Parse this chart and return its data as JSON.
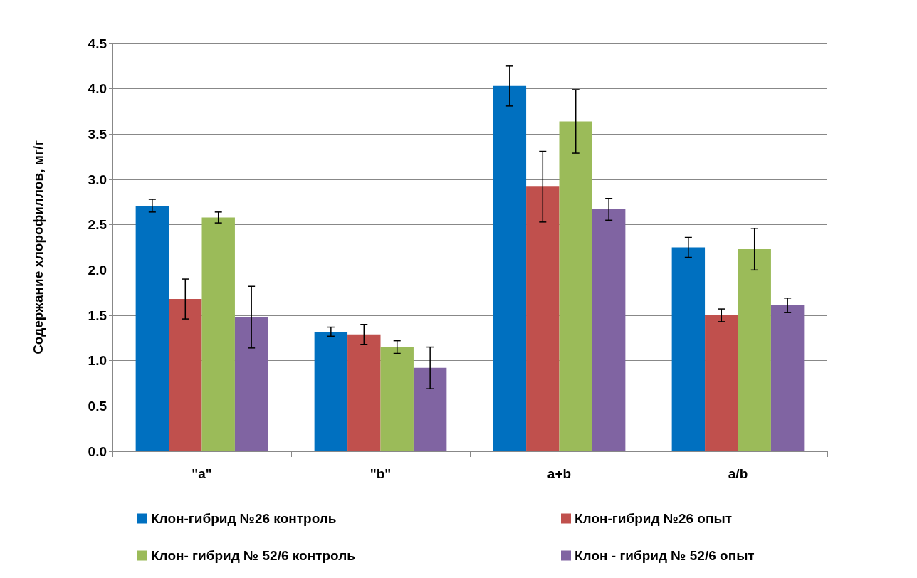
{
  "chart_data": {
    "type": "bar",
    "ylabel": "Содержание хлорофиллов, мг/г",
    "categories": [
      "\"a\"",
      "\"b\"",
      "a+b",
      "a/b"
    ],
    "series": [
      {
        "name": "Клон-гибрид №26 контроль",
        "color": "#0070c0",
        "values": [
          2.71,
          1.32,
          4.03,
          2.25
        ],
        "errors": [
          0.07,
          0.05,
          0.22,
          0.11
        ]
      },
      {
        "name": "Клон-гибрид №26 опыт",
        "color": "#c0504d",
        "values": [
          1.68,
          1.29,
          2.92,
          1.5
        ],
        "errors": [
          0.22,
          0.11,
          0.39,
          0.07
        ]
      },
      {
        "name": "Клон- гибрид № 52/6 контроль",
        "color": "#9bbb59",
        "values": [
          2.58,
          1.15,
          3.64,
          2.23
        ],
        "errors": [
          0.06,
          0.07,
          0.35,
          0.23
        ]
      },
      {
        "name": "Клон - гибрид № 52/6 опыт",
        "color": "#8064a2",
        "values": [
          1.48,
          0.92,
          2.67,
          1.61
        ],
        "errors": [
          0.34,
          0.23,
          0.12,
          0.08
        ]
      }
    ],
    "ylim": [
      0,
      4.5
    ],
    "yticks": [
      {
        "value": 0,
        "label": "0.0"
      },
      {
        "value": 0.5,
        "label": "0.5"
      },
      {
        "value": 1,
        "label": "1.0"
      },
      {
        "value": 1.5,
        "label": "1.5"
      },
      {
        "value": 2,
        "label": "2.0"
      },
      {
        "value": 2.5,
        "label": "2.5"
      },
      {
        "value": 3,
        "label": "3.0"
      },
      {
        "value": 3.5,
        "label": "3.5"
      },
      {
        "value": 4,
        "label": "4.0"
      },
      {
        "value": 4.5,
        "label": "4.5"
      }
    ],
    "grid": "y",
    "legend": "bottom"
  }
}
